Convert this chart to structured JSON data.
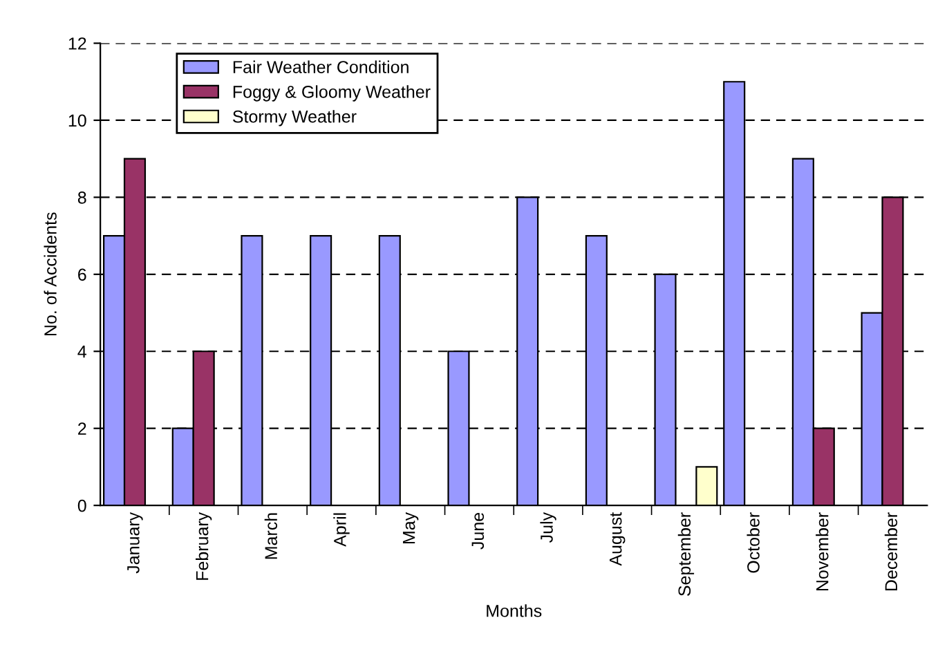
{
  "chart_data": {
    "type": "bar",
    "xlabel": "Months",
    "ylabel": "No. of Accidents",
    "categories": [
      "January",
      "February",
      "March",
      "April",
      "May",
      "June",
      "July",
      "August",
      "September",
      "October",
      "November",
      "December"
    ],
    "series": [
      {
        "name": "Fair Weather Condition",
        "color": "#9999ff",
        "values": [
          7,
          2,
          7,
          7,
          7,
          4,
          8,
          7,
          6,
          11,
          9,
          5
        ]
      },
      {
        "name": "Foggy & Gloomy Weather",
        "color": "#993366",
        "values": [
          9,
          4,
          null,
          null,
          null,
          null,
          null,
          null,
          null,
          null,
          2,
          8
        ]
      },
      {
        "name": "Stormy Weather",
        "color": "#ffffcc",
        "values": [
          null,
          null,
          null,
          null,
          null,
          null,
          null,
          null,
          1,
          null,
          null,
          null
        ]
      }
    ],
    "ylim": [
      0,
      12
    ],
    "yticks": [
      0,
      2,
      4,
      6,
      8,
      10,
      12
    ],
    "grid": "y",
    "legend": "top left"
  }
}
